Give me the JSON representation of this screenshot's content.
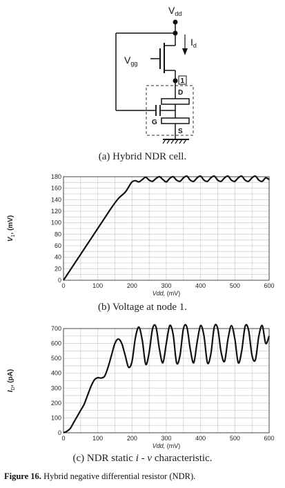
{
  "circuit": {
    "vdd_label": "V",
    "vdd_sub": "dd",
    "id_label": "I",
    "id_sub": "d",
    "vgg_label": "V",
    "vgg_sub": "gg",
    "node_label": "1",
    "drain_label": "D",
    "gate_label": "G",
    "source_label": "S"
  },
  "captions": {
    "a": "(a) Hybrid NDR cell.",
    "b": "(b) Voltage at node 1.",
    "c_prefix": "(c) NDR static ",
    "c_i": "i",
    "c_dash": " - ",
    "c_v": "v",
    "c_suffix": " characteristic."
  },
  "figure": {
    "number": "Figure 16.",
    "text": " Hybrid negative differential resistor (NDR)."
  },
  "chart_data": [
    {
      "type": "line",
      "ylabel_main": "V",
      "ylabel_sub": "1",
      "ylabel_unit": ", (mV)",
      "xlabel_main": "Vdd,",
      "xlabel_unit": " (mV)",
      "xlim": [
        0,
        600
      ],
      "ylim": [
        0,
        180
      ],
      "xticks": [
        0,
        100,
        200,
        300,
        400,
        500,
        600
      ],
      "yticks": [
        0,
        20,
        40,
        60,
        80,
        100,
        120,
        140,
        160,
        180
      ],
      "grid": true,
      "x": [
        0,
        20,
        40,
        60,
        80,
        100,
        120,
        140,
        160,
        180,
        190,
        200,
        210,
        220,
        230,
        240,
        250,
        260,
        270,
        280,
        290,
        300,
        310,
        320,
        330,
        340,
        350,
        360,
        370,
        380,
        390,
        400,
        410,
        420,
        430,
        440,
        450,
        460,
        470,
        480,
        490,
        500,
        510,
        520,
        530,
        540,
        550,
        560,
        570,
        580,
        590,
        600
      ],
      "y": [
        0,
        18,
        36,
        54,
        72,
        90,
        108,
        126,
        142,
        153,
        162,
        171,
        173,
        171,
        175,
        179,
        174,
        172,
        177,
        180,
        175,
        171,
        177,
        180,
        174,
        172,
        178,
        181,
        174,
        172,
        178,
        181,
        174,
        172,
        178,
        181,
        174,
        172,
        178,
        181,
        174,
        172,
        178,
        181,
        174,
        172,
        178,
        181,
        174,
        172,
        178,
        175
      ]
    },
    {
      "type": "line",
      "ylabel_main": "I",
      "ylabel_sub": "D",
      "ylabel_unit": ", (pA)",
      "xlabel_main": "Vdd,",
      "xlabel_unit": " (mV)",
      "xlim": [
        0,
        600
      ],
      "ylim": [
        0,
        700
      ],
      "xticks": [
        0,
        100,
        200,
        300,
        400,
        500,
        600
      ],
      "yticks": [
        0,
        100,
        200,
        300,
        400,
        500,
        600,
        700
      ],
      "grid": true,
      "x": [
        0,
        10,
        20,
        30,
        40,
        50,
        60,
        70,
        80,
        90,
        100,
        110,
        120,
        130,
        140,
        150,
        160,
        170,
        180,
        190,
        200,
        210,
        220,
        230,
        240,
        250,
        260,
        270,
        280,
        290,
        300,
        310,
        320,
        330,
        340,
        350,
        360,
        370,
        380,
        390,
        400,
        410,
        420,
        430,
        440,
        450,
        460,
        470,
        480,
        490,
        500,
        510,
        520,
        530,
        540,
        550,
        560,
        570,
        580,
        590,
        600
      ],
      "y": [
        0,
        10,
        30,
        70,
        110,
        150,
        190,
        250,
        310,
        355,
        370,
        368,
        380,
        440,
        520,
        600,
        630,
        600,
        520,
        440,
        480,
        640,
        710,
        620,
        460,
        540,
        700,
        710,
        560,
        470,
        600,
        720,
        660,
        470,
        520,
        700,
        710,
        560,
        470,
        610,
        720,
        650,
        470,
        530,
        710,
        700,
        540,
        480,
        630,
        720,
        630,
        470,
        550,
        715,
        690,
        520,
        490,
        650,
        720,
        600,
        650
      ]
    }
  ]
}
